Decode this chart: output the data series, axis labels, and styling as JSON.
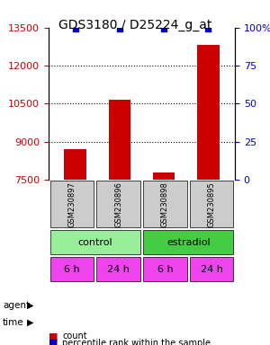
{
  "title": "GDS3180 / D25224_g_at",
  "samples": [
    "GSM230897",
    "GSM230896",
    "GSM230898",
    "GSM230895"
  ],
  "counts": [
    8700,
    10650,
    7800,
    12800
  ],
  "percentiles": [
    99,
    99,
    99,
    99
  ],
  "ylim_left": [
    7500,
    13500
  ],
  "yticks_left": [
    7500,
    9000,
    10500,
    12000,
    13500
  ],
  "ylim_right": [
    0,
    100
  ],
  "yticks_right": [
    0,
    25,
    50,
    75,
    100
  ],
  "bar_color": "#cc0000",
  "dot_color": "#0000cc",
  "agent_labels": [
    "control",
    "estradiol"
  ],
  "agent_colors": [
    "#99ee99",
    "#44cc44"
  ],
  "time_labels": [
    "6 h",
    "24 h",
    "6 h",
    "24 h"
  ],
  "time_color": "#ee44ee",
  "sample_box_color": "#cccccc",
  "legend_count_color": "#cc0000",
  "legend_pct_color": "#0000cc",
  "grid_color": "#888888"
}
